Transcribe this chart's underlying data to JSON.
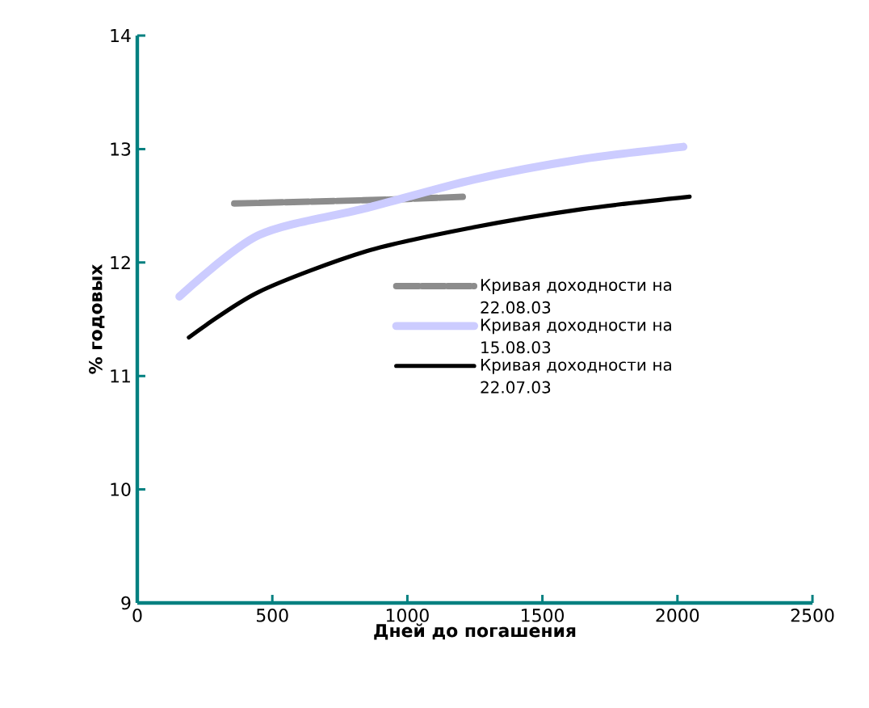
{
  "chart_data": {
    "type": "line",
    "xlabel": "Дней до погашения",
    "ylabel": "% годовых",
    "xlim": [
      0,
      2500
    ],
    "ylim": [
      9,
      14
    ],
    "xticks": [
      0,
      500,
      1000,
      1500,
      2000,
      2500
    ],
    "yticks": [
      9,
      10,
      11,
      12,
      13,
      14
    ],
    "legend": "right",
    "series": [
      {
        "name": "Кривая доходности на 22.08.03",
        "color": "#8c8c8c",
        "line_style": "dashed",
        "x": [
          359,
          700,
          1000,
          1214
        ],
        "values": [
          12.52,
          12.54,
          12.56,
          12.58
        ]
      },
      {
        "name": "Кривая доходности на 15.08.03",
        "color": "#ccccff",
        "line_style": "solid",
        "x": [
          156,
          449,
          849,
          1244,
          1645,
          2022
        ],
        "values": [
          11.7,
          12.24,
          12.48,
          12.73,
          12.91,
          13.02
        ]
      },
      {
        "name": "Кривая доходности на 22.07.03",
        "color": "#000000",
        "line_style": "solid",
        "x": [
          191,
          449,
          849,
          1244,
          1645,
          2045
        ],
        "values": [
          11.34,
          11.74,
          12.1,
          12.31,
          12.47,
          12.58
        ]
      }
    ]
  }
}
